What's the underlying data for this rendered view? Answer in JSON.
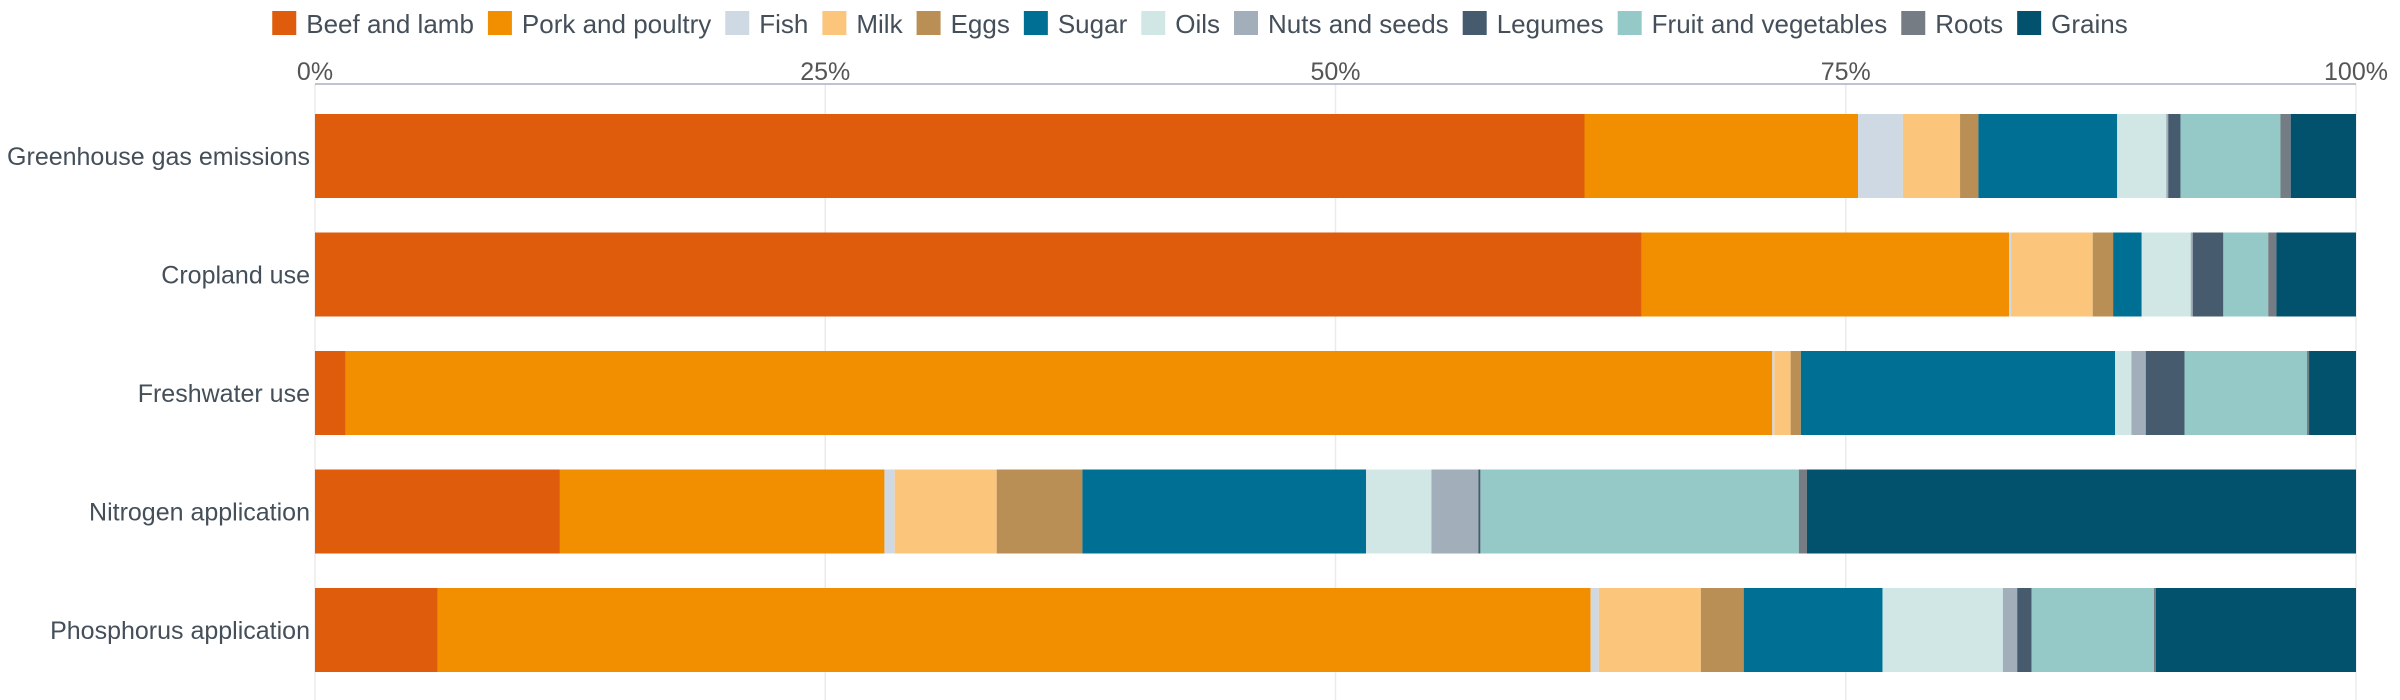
{
  "chart_data": {
    "type": "bar",
    "orientation": "horizontal",
    "stacked": true,
    "normalized": true,
    "title": "",
    "xlabel": "",
    "ylabel": "",
    "xlim": [
      0,
      100
    ],
    "x_ticks": [
      "0%",
      "25%",
      "50%",
      "75%",
      "100%"
    ],
    "x_axis_position": "top",
    "legend_position": "top",
    "grid": true,
    "categories": [
      "Greenhouse gas emissions",
      "Cropland use",
      "Freshwater use",
      "Nitrogen application",
      "Phosphorus application"
    ],
    "series": [
      {
        "name": "Beef and lamb",
        "color": "#DE5C0B",
        "values": [
          62.2,
          65.0,
          1.5,
          12.0,
          6.0
        ]
      },
      {
        "name": "Pork and poultry",
        "color": "#F18F01",
        "values": [
          13.4,
          18.0,
          69.9,
          15.9,
          56.5
        ]
      },
      {
        "name": "Fish",
        "color": "#CFD9E3",
        "values": [
          2.2,
          0.1,
          0.1,
          0.5,
          0.4
        ]
      },
      {
        "name": "Milk",
        "color": "#FBC67C",
        "values": [
          2.8,
          4.0,
          0.8,
          5.0,
          5.0
        ]
      },
      {
        "name": "Eggs",
        "color": "#B98F56",
        "values": [
          0.9,
          1.0,
          0.5,
          4.2,
          2.1
        ]
      },
      {
        "name": "Sugar",
        "color": "#006F94",
        "values": [
          6.8,
          1.4,
          15.4,
          13.9,
          6.8
        ]
      },
      {
        "name": "Oils",
        "color": "#D1E7E6",
        "values": [
          2.4,
          2.4,
          0.8,
          3.2,
          5.9
        ]
      },
      {
        "name": "Nuts and seeds",
        "color": "#A2AFBA",
        "values": [
          0.1,
          0.1,
          0.7,
          2.3,
          0.7
        ]
      },
      {
        "name": "Legumes",
        "color": "#465B6E",
        "values": [
          0.6,
          1.5,
          1.9,
          0.1,
          0.7
        ]
      },
      {
        "name": "Fruit and vegetables",
        "color": "#94C9C7",
        "values": [
          4.9,
          2.2,
          6.0,
          15.6,
          6.0
        ]
      },
      {
        "name": "Roots",
        "color": "#767C84",
        "values": [
          0.5,
          0.4,
          0.1,
          0.4,
          0.1
        ]
      },
      {
        "name": "Grains",
        "color": "#02526E",
        "values": [
          3.2,
          3.9,
          2.3,
          26.9,
          9.8
        ]
      }
    ]
  }
}
